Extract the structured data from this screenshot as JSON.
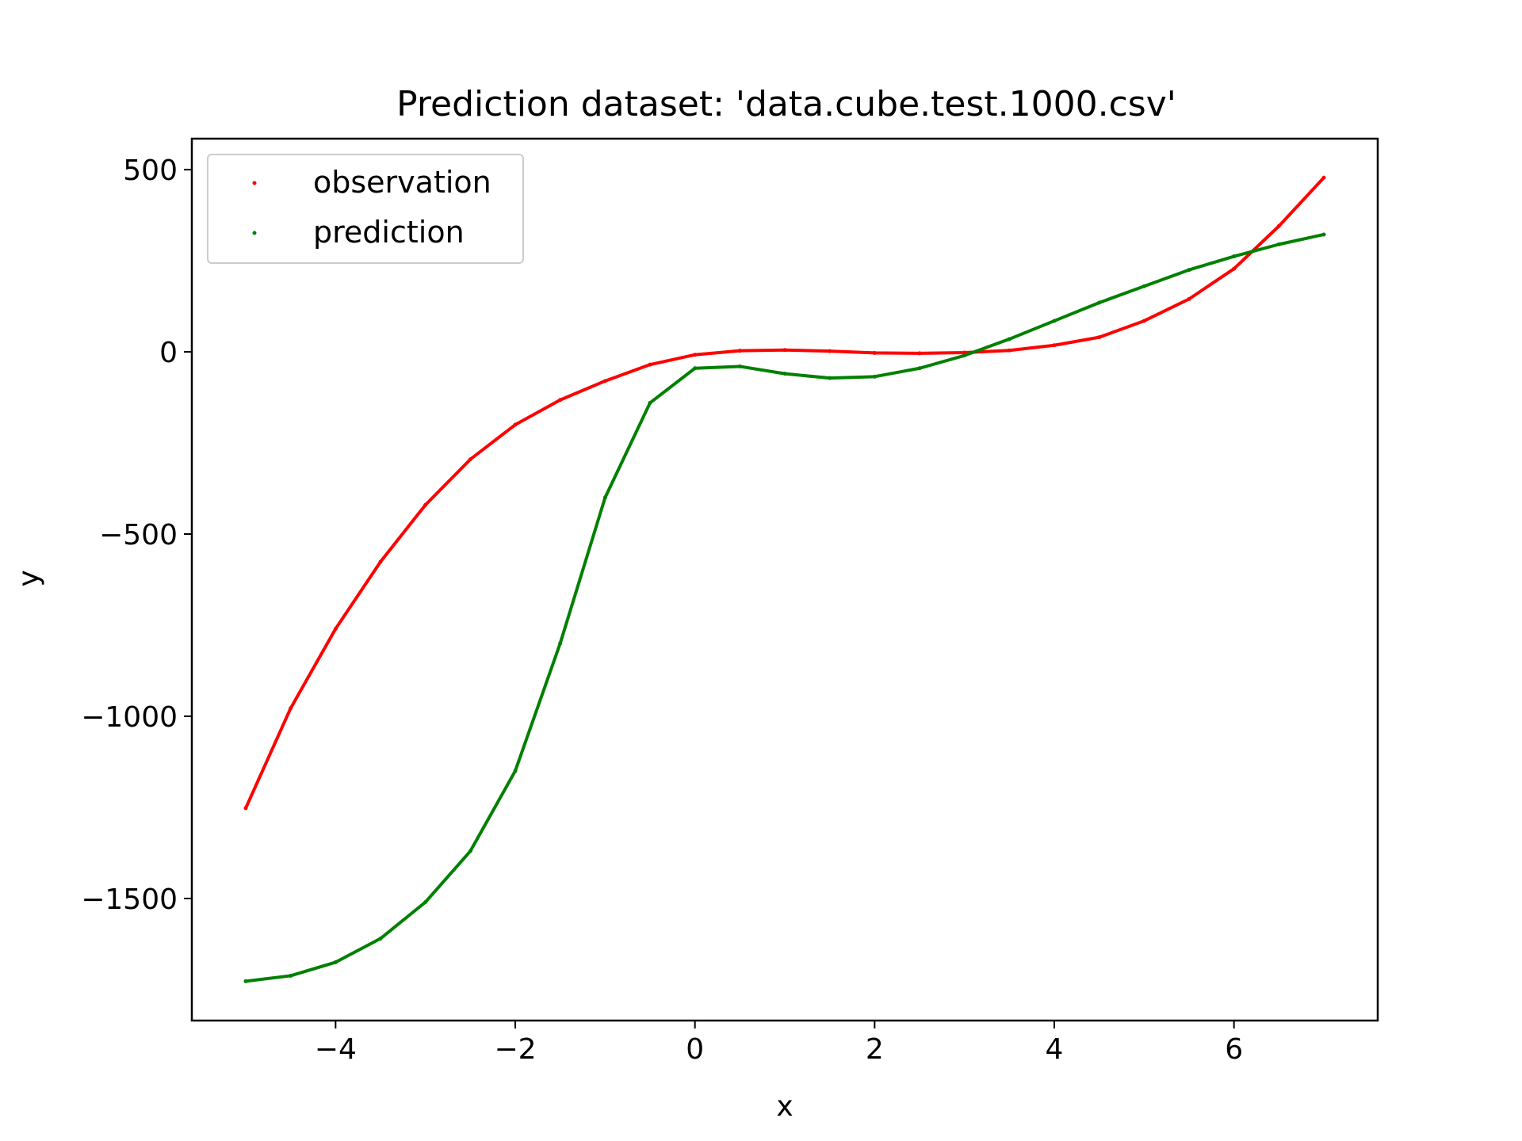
{
  "chart_data": {
    "type": "scatter",
    "title": "Prediction dataset: 'data.cube.test.1000.csv'",
    "xlabel": "x",
    "ylabel": "y",
    "xlim": [
      -5.6,
      7.6
    ],
    "ylim": [
      -1835,
      585
    ],
    "x_ticks": [
      -4,
      -2,
      0,
      2,
      4,
      6
    ],
    "x_tick_labels": [
      "−4",
      "−2",
      "0",
      "2",
      "4",
      "6"
    ],
    "y_ticks": [
      500,
      0,
      -500,
      -1000,
      -1500
    ],
    "y_tick_labels": [
      "500",
      "0",
      "−500",
      "−1000",
      "−1500"
    ],
    "grid": false,
    "legend_position": "upper-left",
    "series": [
      {
        "name": "observation",
        "color": "#ff0000",
        "x": [
          -5.0,
          -4.5,
          -4.0,
          -3.5,
          -3.0,
          -2.5,
          -2.0,
          -1.5,
          -1.0,
          -0.5,
          0.0,
          0.5,
          1.0,
          1.5,
          2.0,
          2.5,
          3.0,
          3.5,
          4.0,
          4.5,
          5.0,
          5.5,
          6.0,
          6.5,
          7.0
        ],
        "y": [
          -1252,
          -978,
          -760,
          -576,
          -420,
          -295,
          -200,
          -132,
          -80,
          -35,
          -8,
          3,
          5,
          2,
          -3,
          -4,
          -2,
          4,
          18,
          40,
          85,
          145,
          228,
          345,
          478
        ]
      },
      {
        "name": "prediction",
        "color": "#008000",
        "x": [
          -5.0,
          -4.5,
          -4.0,
          -3.5,
          -3.0,
          -2.5,
          -2.0,
          -1.5,
          -1.0,
          -0.5,
          0.0,
          0.5,
          1.0,
          1.5,
          2.0,
          2.5,
          3.0,
          3.5,
          4.0,
          4.5,
          5.0,
          5.5,
          6.0,
          6.5,
          7.0
        ],
        "y": [
          -1727,
          -1712,
          -1675,
          -1610,
          -1510,
          -1370,
          -1150,
          -800,
          -400,
          -140,
          -45,
          -40,
          -60,
          -72,
          -68,
          -45,
          -10,
          35,
          85,
          135,
          180,
          225,
          262,
          295,
          322
        ]
      }
    ]
  }
}
